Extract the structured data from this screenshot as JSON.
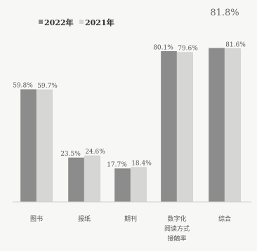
{
  "chart_data": {
    "type": "bar",
    "categories": [
      "图书",
      "报纸",
      "期刊",
      "数字化阅读方式接触率",
      "综合"
    ],
    "category_lines": [
      [
        "图书"
      ],
      [
        "报纸"
      ],
      [
        "期刊"
      ],
      [
        "数字化",
        "阅读方式",
        "接触率"
      ],
      [
        "综合"
      ]
    ],
    "series": [
      {
        "name": "2022年",
        "values": [
          59.8,
          23.5,
          17.7,
          80.1,
          81.8
        ],
        "labels": [
          "59.8%",
          "23.5%",
          "17.7%",
          "80.1%",
          "81.8%"
        ],
        "color": "#8c8c8c"
      },
      {
        "name": "2021年",
        "values": [
          59.7,
          24.6,
          18.4,
          79.6,
          81.6
        ],
        "labels": [
          "59.7%",
          "24.6%",
          "18.4%",
          "79.6%",
          "81.6%"
        ],
        "color": "#d6d6d4"
      }
    ],
    "legend": [
      "2022年",
      "2021年"
    ],
    "legend_position": "top-left",
    "ylim": [
      0,
      100
    ],
    "grid": false,
    "title": "",
    "xlabel": "",
    "ylabel": ""
  }
}
